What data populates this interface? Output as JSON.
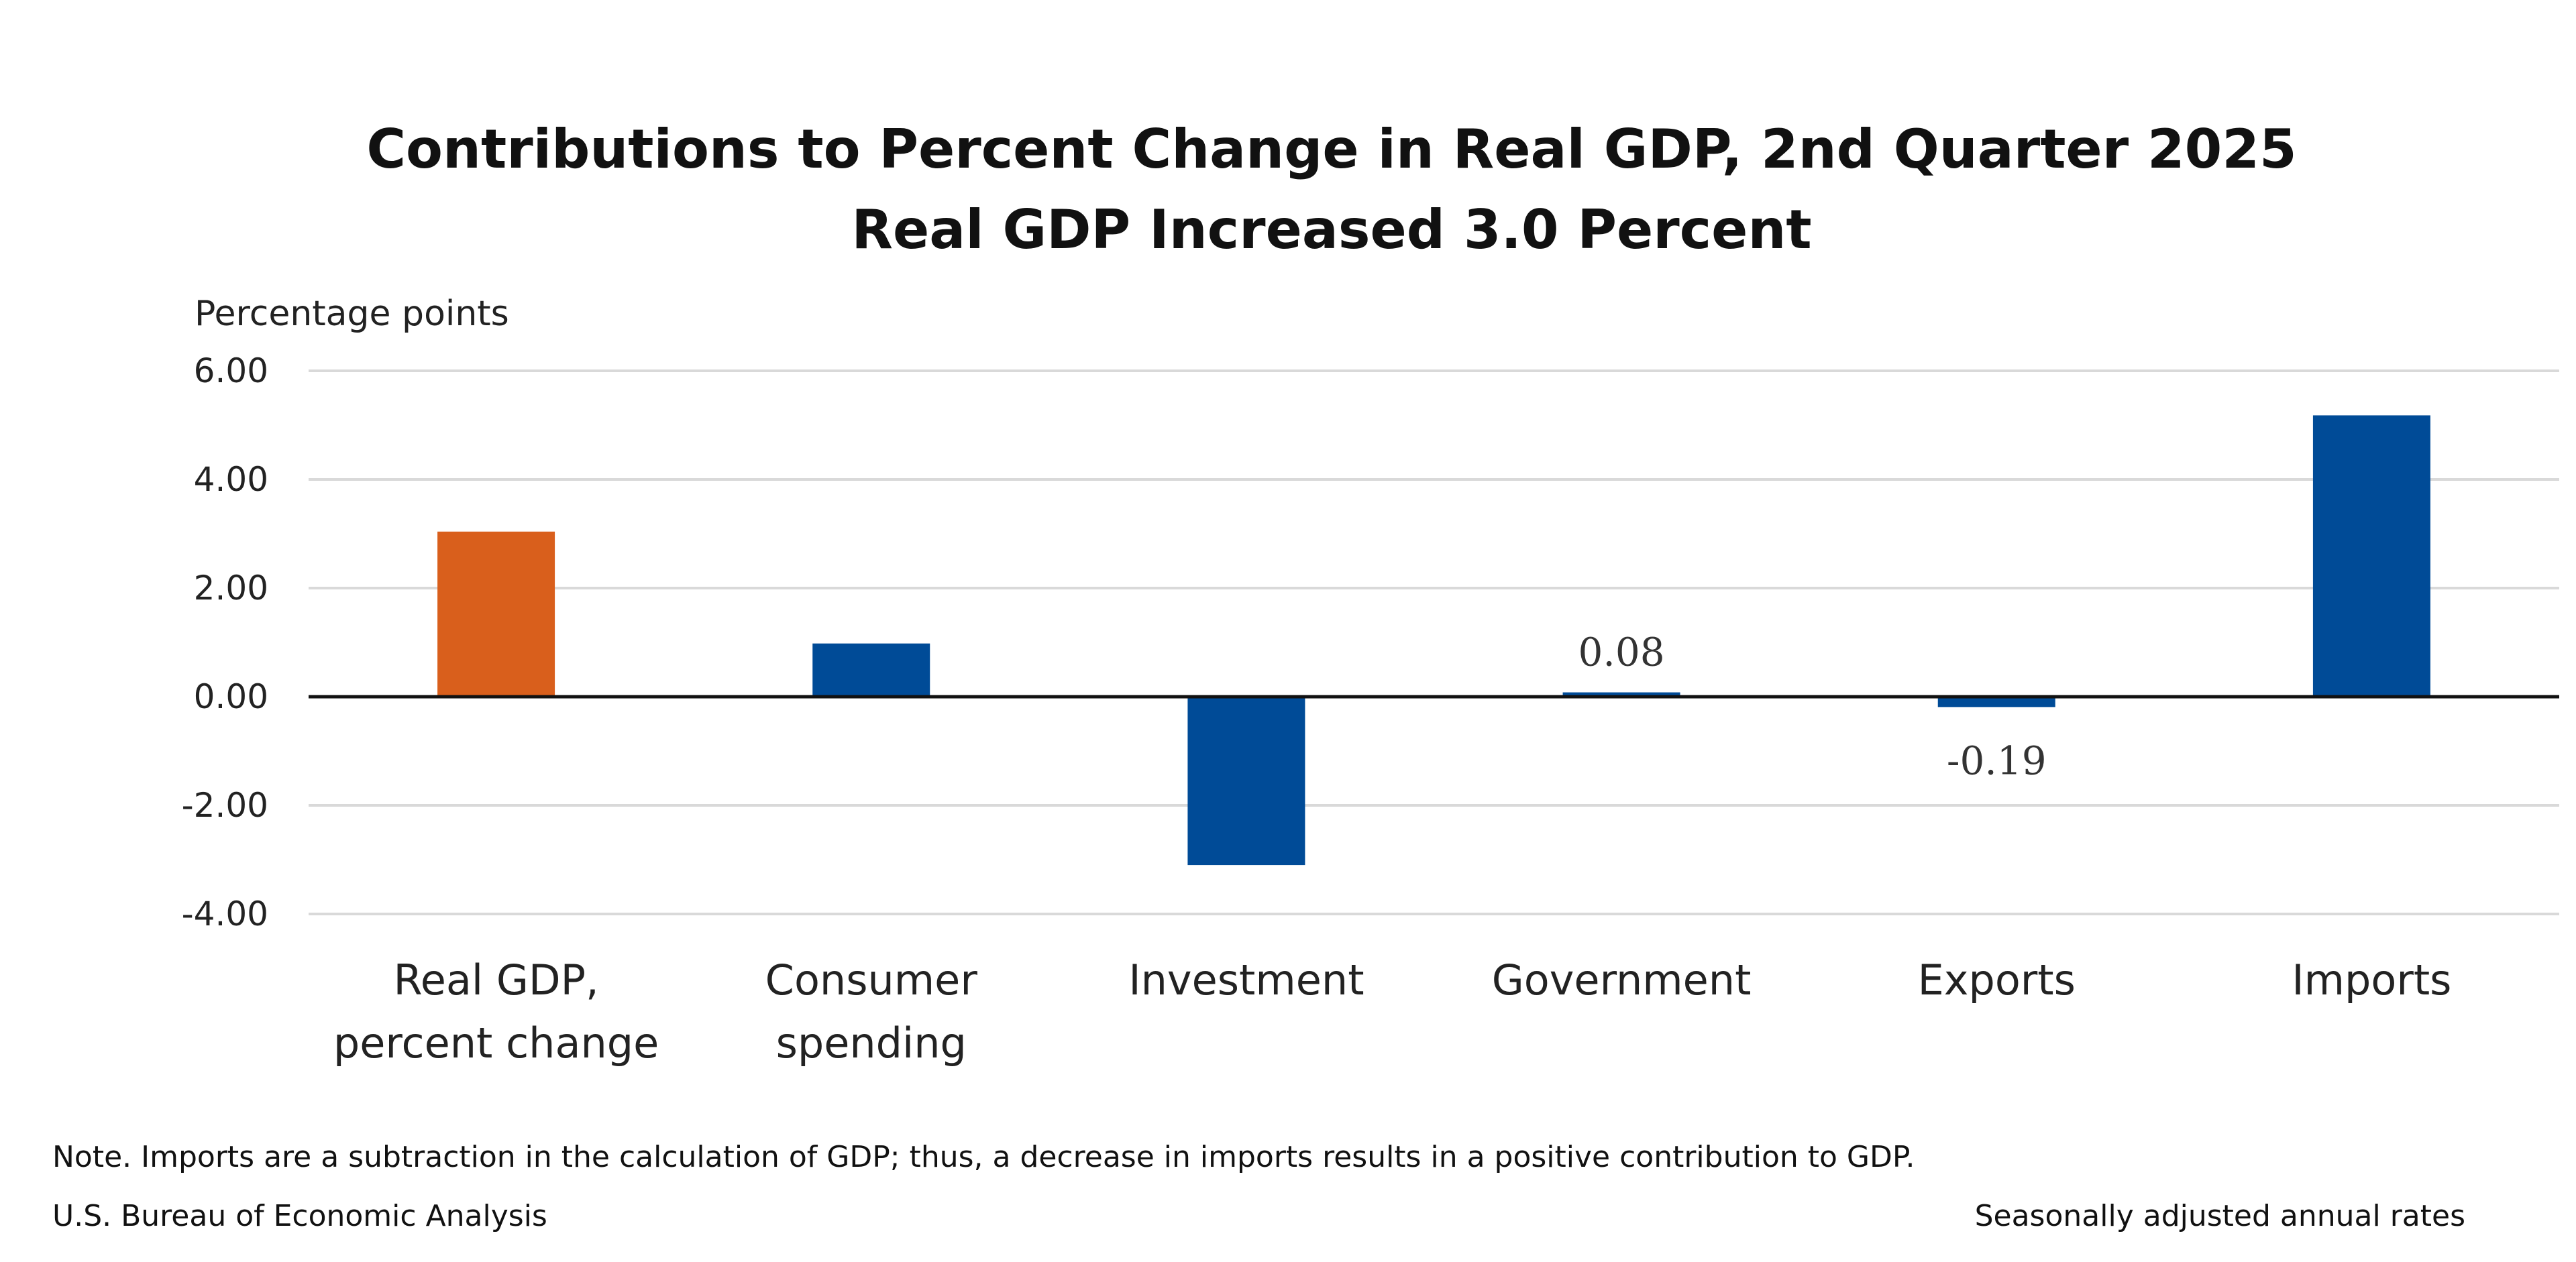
{
  "chart_data": {
    "type": "bar",
    "title": "Contributions to Percent Change in Real GDP, 2nd Quarter 2025",
    "subtitle": "Real GDP Increased 3.0 Percent",
    "ylabel": "Percentage points",
    "xlabel": "",
    "ylim": [
      -4,
      6
    ],
    "yticks": [
      "6.00",
      "4.00",
      "2.00",
      "0.00",
      "-2.00",
      "-4.00"
    ],
    "grid": true,
    "categories": [
      [
        "Real GDP,",
        "percent change"
      ],
      [
        "Consumer",
        "spending"
      ],
      [
        "Investment"
      ],
      [
        "Government"
      ],
      [
        "Exports"
      ],
      [
        "Imports"
      ]
    ],
    "values": [
      3.04,
      0.98,
      -3.1,
      0.08,
      -0.19,
      5.18
    ],
    "data_labels": [
      "",
      "",
      "",
      "0.08",
      "-0.19",
      ""
    ],
    "colors": [
      "#d95f1c",
      "#004b97",
      "#004b97",
      "#004b97",
      "#004b97",
      "#004b97"
    ]
  },
  "footer": {
    "note": "Note. Imports are a subtraction in the calculation of GDP; thus, a decrease in imports results in a positive contribution to GDP.",
    "source": "U.S. Bureau of Economic Analysis",
    "rates": "Seasonally adjusted annual rates"
  }
}
